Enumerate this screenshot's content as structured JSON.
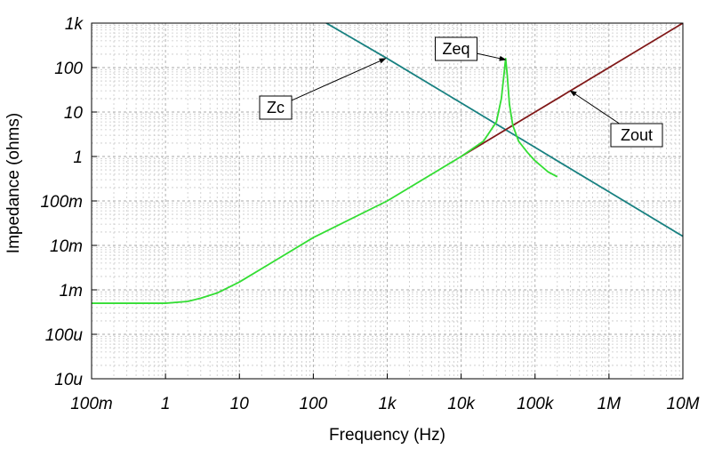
{
  "chart_data": {
    "type": "line",
    "title": "",
    "xlabel": "Frequency (Hz)",
    "ylabel": "Impedance (ohms)",
    "x_scale": "log",
    "y_scale": "log",
    "xlim": [
      0.1,
      10000000
    ],
    "ylim": [
      1e-05,
      1000
    ],
    "x_ticks": [
      {
        "value": 0.1,
        "label": "100m"
      },
      {
        "value": 1,
        "label": "1"
      },
      {
        "value": 10,
        "label": "10"
      },
      {
        "value": 100,
        "label": "100"
      },
      {
        "value": 1000,
        "label": "1k"
      },
      {
        "value": 10000,
        "label": "10k"
      },
      {
        "value": 100000,
        "label": "100k"
      },
      {
        "value": 1000000,
        "label": "1M"
      },
      {
        "value": 10000000,
        "label": "10M"
      }
    ],
    "y_ticks": [
      {
        "value": 1e-05,
        "label": "10u"
      },
      {
        "value": 0.0001,
        "label": "100u"
      },
      {
        "value": 0.001,
        "label": "1m"
      },
      {
        "value": 0.01,
        "label": "10m"
      },
      {
        "value": 0.1,
        "label": "100m"
      },
      {
        "value": 1,
        "label": "1"
      },
      {
        "value": 10,
        "label": "10"
      },
      {
        "value": 100,
        "label": "100"
      },
      {
        "value": 1000,
        "label": "1k"
      }
    ],
    "grid": true,
    "series": [
      {
        "name": "Zc",
        "color": "#178080",
        "x": [
          150,
          1000,
          10000,
          40000,
          100000,
          1000000,
          10000000
        ],
        "y": [
          1000,
          160,
          16,
          4,
          1.6,
          0.16,
          0.016
        ]
      },
      {
        "name": "Zout",
        "color": "#801818",
        "x": [
          10000,
          40000,
          100000,
          300000,
          1000000,
          10000000
        ],
        "y": [
          1,
          4,
          10,
          30,
          100,
          1000
        ]
      },
      {
        "name": "Zeq",
        "color": "#33dd33",
        "x": [
          0.1,
          1,
          2,
          3,
          5,
          10,
          30,
          100,
          1000,
          10000,
          20000,
          30000,
          35000,
          38000,
          40000,
          42000,
          45000,
          50000,
          60000,
          80000,
          100000,
          150000,
          200000
        ],
        "y": [
          0.0005,
          0.0005,
          0.00055,
          0.00065,
          0.00085,
          0.0015,
          0.0045,
          0.015,
          0.1,
          1,
          2.2,
          6,
          20,
          70,
          160,
          70,
          15,
          5,
          2.2,
          1.2,
          0.8,
          0.45,
          0.35
        ]
      }
    ],
    "annotations": [
      {
        "text": "Zc",
        "target": [
          950,
          160
        ],
        "box": [
          310,
          121
        ]
      },
      {
        "text": "Zeq",
        "target": [
          40000,
          150
        ],
        "box": [
          513,
          55
        ]
      },
      {
        "text": "Zout",
        "target": [
          300000,
          30
        ],
        "box": [
          716,
          152
        ]
      }
    ]
  }
}
